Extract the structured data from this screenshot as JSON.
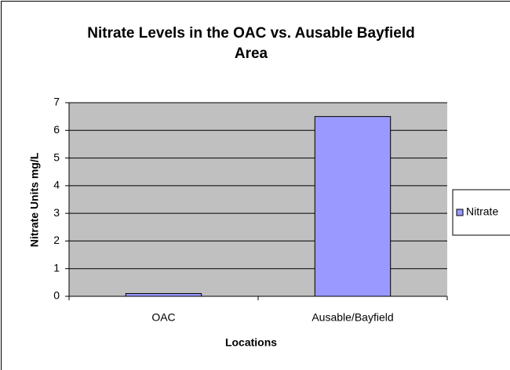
{
  "chart_data": {
    "type": "bar",
    "title": "Nitrate Levels in the OAC vs. Ausable Bayfield Area",
    "x_label": "Locations",
    "y_label": "Nitrate Units mg/L",
    "categories": [
      "OAC",
      "Ausable/Bayfield"
    ],
    "series": [
      {
        "name": "Nitrate",
        "color": "#9999ff",
        "values": [
          0.1,
          6.5
        ]
      }
    ],
    "ylim": [
      0,
      7
    ],
    "yticks": [
      0,
      1,
      2,
      3,
      4,
      5,
      6,
      7
    ],
    "grid": true,
    "legend": "right"
  }
}
